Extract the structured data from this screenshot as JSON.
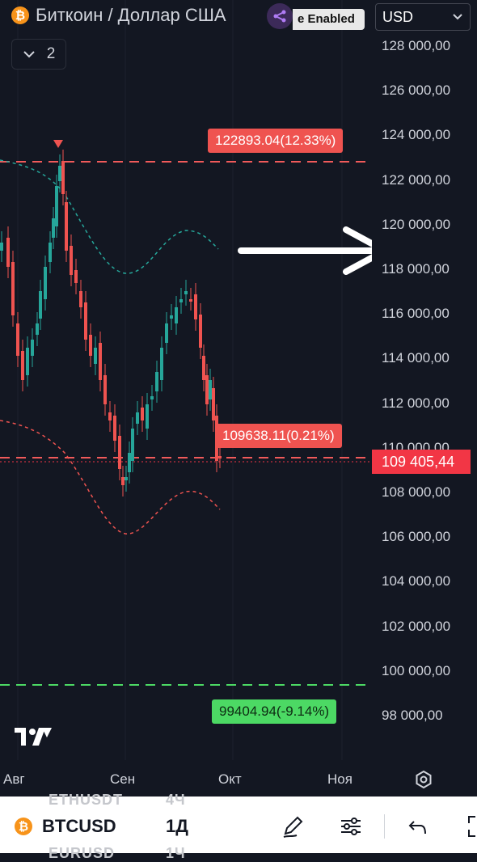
{
  "header": {
    "title": "Биткоин / Доллар США",
    "enabled_chip": "e Enabled",
    "currency": "USD",
    "collapse_count": "2"
  },
  "price_axis": {
    "labels": [
      "128 000,00",
      "126 000,00",
      "124 000,00",
      "122 000,00",
      "120 000,00",
      "118 000,00",
      "116 000,00",
      "114 000,00",
      "112 000,00",
      "110 000,00",
      "108 000,00",
      "106 000,00",
      "104 000,00",
      "102 000,00",
      "100 000,00",
      "98 000,00"
    ],
    "current_price": "109 405,44"
  },
  "annotations": {
    "upper_target": "122893.04(12.33%)",
    "middle_level": "109638.11(0.21%)",
    "lower_target": "99404.94(-9.14%)"
  },
  "time_axis": {
    "labels": [
      "Авг",
      "Сен",
      "Окт",
      "Ноя"
    ]
  },
  "bottom_bar": {
    "ghost_top_symbol": "ETHUSDT",
    "ghost_top_interval": "4Ч",
    "ghost_bottom_symbol": "EURUSD",
    "ghost_bottom_interval": "1Ч",
    "symbol": "BTCUSD",
    "interval": "1Д"
  },
  "colors": {
    "background": "#131722",
    "up_candle": "#26a69a",
    "down_candle": "#ef5350",
    "current_price": "#f23645",
    "target_green": "#4cd964"
  },
  "icons": {
    "symbol": "bitcoin-icon",
    "plugin": "plugin-icon",
    "logo": "tradingview-logo-icon",
    "settings": "gear-icon",
    "draw": "pen-icon",
    "indicators": "sliders-icon",
    "undo": "undo-icon",
    "fullscreen": "fullscreen-icon"
  }
}
